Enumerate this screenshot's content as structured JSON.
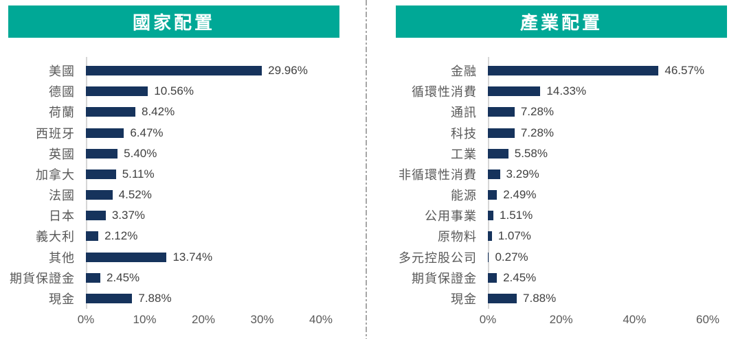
{
  "colors": {
    "header_bg": "#00A896",
    "bar_color": "#16335C",
    "category_text": "#595959",
    "value_text": "#404040",
    "axis_line": "#D6D6D6",
    "divider": "#A6A6A6",
    "title_text": "#FFFFFF",
    "page_bg": "#FFFFFF"
  },
  "chart_data": [
    {
      "type": "bar",
      "orientation": "horizontal",
      "title": "國家配置",
      "categories": [
        "美國",
        "德國",
        "荷蘭",
        "西班牙",
        "英國",
        "加拿大",
        "法國",
        "日本",
        "義大利",
        "其他",
        "期貨保證金",
        "現金"
      ],
      "values": [
        29.96,
        10.56,
        8.42,
        6.47,
        5.4,
        5.11,
        4.52,
        3.37,
        2.12,
        13.74,
        2.45,
        7.88
      ],
      "value_labels": [
        "29.96%",
        "10.56%",
        "8.42%",
        "6.47%",
        "5.40%",
        "5.11%",
        "4.52%",
        "3.37%",
        "2.12%",
        "13.74%",
        "2.45%",
        "7.88%"
      ],
      "xlim": [
        0,
        40
      ],
      "x_ticks": [
        "0%",
        "10%",
        "20%",
        "30%",
        "40%"
      ],
      "x_tick_values": [
        0,
        10,
        20,
        30,
        40
      ],
      "grid": false,
      "legend": false
    },
    {
      "type": "bar",
      "orientation": "horizontal",
      "title": "產業配置",
      "categories": [
        "金融",
        "循環性消費",
        "通訊",
        "科技",
        "工業",
        "非循環性消費",
        "能源",
        "公用事業",
        "原物料",
        "多元控股公司",
        "期貨保證金",
        "現金"
      ],
      "values": [
        46.57,
        14.33,
        7.28,
        7.28,
        5.58,
        3.29,
        2.49,
        1.51,
        1.07,
        0.27,
        2.45,
        7.88
      ],
      "value_labels": [
        "46.57%",
        "14.33%",
        "7.28%",
        "7.28%",
        "5.58%",
        "3.29%",
        "2.49%",
        "1.51%",
        "1.07%",
        "0.27%",
        "2.45%",
        "7.88%"
      ],
      "xlim": [
        0,
        60
      ],
      "x_ticks": [
        "0%",
        "20%",
        "40%",
        "60%"
      ],
      "x_tick_values": [
        0,
        20,
        40,
        60
      ],
      "grid": false,
      "legend": false
    }
  ]
}
